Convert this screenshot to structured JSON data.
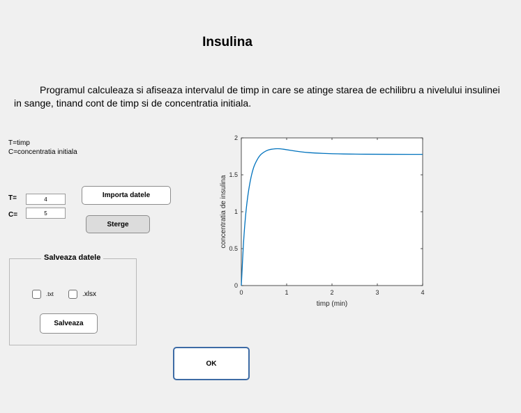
{
  "window": {
    "title": "Insulina",
    "description": "Programul calculeaza si afiseaza intervalul de timp in care se atinge starea de echilibru a nivelului insulinei in sange, tinand cont de timp si de concentratia initiala."
  },
  "legend": {
    "line1": "T=timp",
    "line2": "C=concentratia initiala"
  },
  "inputs": {
    "t_label": "T=",
    "t_value": "4",
    "c_label": "C=",
    "c_value": "5"
  },
  "buttons": {
    "import_label": "Importa datele",
    "clear_label": "Sterge",
    "save_label": "Salveaza",
    "ok_label": "OK"
  },
  "save_panel": {
    "title": "Salveaza datele",
    "txt_label": ".txt",
    "xlsx_label": ".xlsx",
    "txt_checked": false,
    "xlsx_checked": false
  },
  "chart_data": {
    "type": "line",
    "title": "",
    "xlabel": "timp (min)",
    "ylabel": "concentratia de insulina",
    "xlim": [
      0,
      4
    ],
    "ylim": [
      0,
      2
    ],
    "xticks": [
      "0",
      "1",
      "2",
      "3",
      "4"
    ],
    "yticks": [
      "0",
      "0.5",
      "1",
      "1.5",
      "2"
    ],
    "grid": false,
    "line_color": "#0072bd",
    "series": [
      {
        "x": [
          0,
          0.05,
          0.1,
          0.15,
          0.2,
          0.25,
          0.3,
          0.4,
          0.5,
          0.6,
          0.7,
          0.8,
          0.9,
          1.0,
          1.2,
          1.4,
          1.6,
          2.0,
          2.5,
          3.0,
          3.5,
          4.0
        ],
        "y": [
          0,
          0.62,
          1.0,
          1.25,
          1.43,
          1.56,
          1.65,
          1.76,
          1.81,
          1.84,
          1.85,
          1.855,
          1.85,
          1.84,
          1.82,
          1.805,
          1.795,
          1.785,
          1.78,
          1.778,
          1.777,
          1.777
        ]
      }
    ]
  }
}
